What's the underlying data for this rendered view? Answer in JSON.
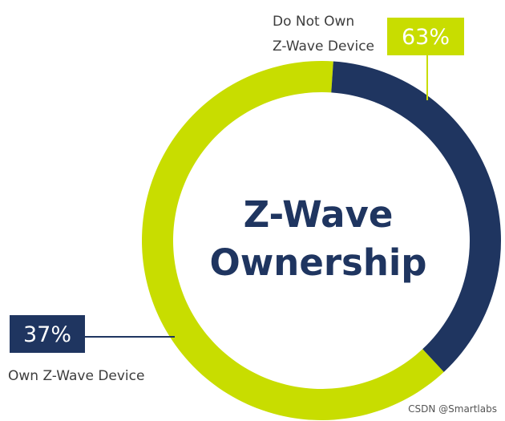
{
  "chart_data": {
    "type": "pie",
    "title_lines": [
      "Z-Wave",
      "Ownership"
    ],
    "slices": [
      {
        "label_lines": [
          "Do Not Own",
          "Z-Wave Device"
        ],
        "value": 63,
        "display": "63%",
        "color": "#c8dd00",
        "text_color": "#ffffff"
      },
      {
        "label_lines": [
          "Own Z-Wave Device"
        ],
        "value": 37,
        "display": "37%",
        "color": "#1f3560",
        "text_color": "#ffffff"
      }
    ],
    "legend": "none"
  },
  "watermark": "CSDN @Smartlabs"
}
